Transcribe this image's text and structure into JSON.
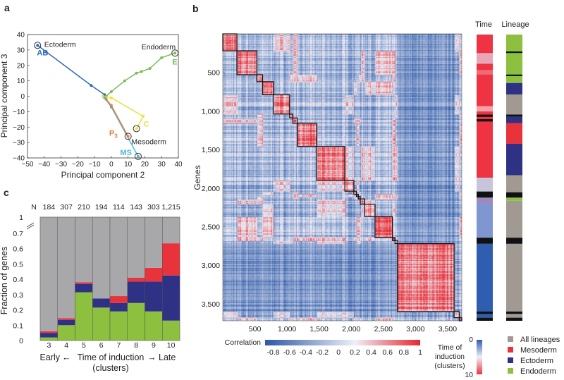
{
  "panel_labels": {
    "a": "a",
    "b": "b",
    "c": "c"
  },
  "chart_data": [
    {
      "panel": "a",
      "type": "line",
      "xlabel": "Principal component 2",
      "ylabel": "Principal component 3",
      "xlim": [
        -50,
        40
      ],
      "ylim": [
        -40,
        40
      ],
      "xticks": [
        -50,
        -40,
        -30,
        -20,
        -10,
        0,
        10,
        20,
        30,
        40
      ],
      "yticks": [
        -40,
        -30,
        -20,
        -10,
        0,
        10,
        20,
        30,
        40
      ],
      "xtick_labels": [
        "−50",
        "−40",
        "−30",
        "−20",
        "−10",
        "0",
        "10",
        "20",
        "30",
        "40"
      ],
      "ytick_labels": [
        "−40",
        "−30",
        "−20",
        "−10",
        "0",
        "10",
        "20",
        "30",
        "40"
      ],
      "series": [
        {
          "name": "AB",
          "color": "#2a66b8",
          "x": [
            -5,
            -4,
            -12,
            -44
          ],
          "y": [
            0,
            1,
            7,
            33
          ]
        },
        {
          "name": "E",
          "color": "#7dbb5a",
          "x": [
            -5,
            -3,
            0,
            8,
            15,
            18,
            23,
            30,
            38
          ],
          "y": [
            0,
            0,
            3,
            10,
            15,
            16,
            18,
            25,
            28
          ]
        },
        {
          "name": "C",
          "color": "#e6e437",
          "x": [
            -5,
            0,
            19,
            15
          ],
          "y": [
            0,
            -1,
            -13,
            -21
          ]
        },
        {
          "name": "MS",
          "color": "#4bb8d6",
          "x": [
            -4,
            0,
            16
          ],
          "y": [
            -1,
            -7,
            -39
          ]
        },
        {
          "name": "P3",
          "color": "#ec7b35",
          "x": [
            -3,
            0,
            10
          ],
          "y": [
            -2,
            -6,
            -26
          ]
        }
      ],
      "annotations": [
        "Ectoderm",
        "Endoderm",
        "Mesoderm"
      ],
      "label_sub": "3"
    },
    {
      "panel": "b",
      "type": "heatmap",
      "ylabel": "Genes",
      "xlim": [
        0,
        3720
      ],
      "ylim": [
        0,
        3720
      ],
      "ticks": [
        500,
        1000,
        1500,
        2000,
        2500,
        3000,
        3500
      ],
      "tick_labels": [
        "500",
        "1,000",
        "1,500",
        "2,000",
        "2,500",
        "3,000",
        "3,500"
      ],
      "cluster_boundaries": [
        0,
        220,
        530,
        620,
        790,
        1040,
        1090,
        1160,
        1460,
        1900,
        2040,
        2080,
        2110,
        2140,
        2210,
        2370,
        2640,
        2680,
        2720,
        3600,
        3680,
        3720
      ],
      "colorbar": {
        "label": "Correlation",
        "range": [
          -0.9,
          1
        ],
        "ticks": [
          -0.8,
          -0.6,
          -0.4,
          -0.2,
          0,
          0.2,
          0.4,
          0.6,
          0.8,
          1
        ],
        "tick_labels": [
          "-0.8",
          "-0.6",
          "-0.4",
          "-0.2",
          "0",
          "0.2",
          "0.4",
          "0.6",
          "0.8",
          "1"
        ],
        "colors": [
          "#2b57a6",
          "#eef0f8",
          "#e62830"
        ]
      },
      "side_bars": {
        "time": {
          "title": "Time",
          "segments": [
            [
              0,
              1860,
              "#ee3442"
            ],
            [
              240,
              380,
              "#e9a6b4"
            ],
            [
              460,
              520,
              "#f06a78"
            ],
            [
              930,
              1000,
              "#f3a0a8"
            ],
            [
              1040,
              1070,
              "#111111"
            ],
            [
              1100,
              1130,
              "#111111"
            ],
            [
              1860,
              2040,
              "#c8c4dc"
            ],
            [
              2040,
              2120,
              "#111111"
            ],
            [
              2120,
              2200,
              "#9a8ac0"
            ],
            [
              2200,
              2640,
              "#7f96d0"
            ],
            [
              2640,
              2720,
              "#111111"
            ],
            [
              2720,
              3680,
              "#2f5db0"
            ],
            [
              3600,
              3630,
              "#111111"
            ],
            [
              3680,
              3720,
              "#111111"
            ]
          ]
        },
        "lineage": {
          "title": "Lineage",
          "segments": [
            [
              0,
              630,
              "#8dc03f"
            ],
            [
              220,
              240,
              "#111111"
            ],
            [
              520,
              540,
              "#111111"
            ],
            [
              630,
              780,
              "#2e3184"
            ],
            [
              780,
              1040,
              "#a09a92"
            ],
            [
              1040,
              1070,
              "#111111"
            ],
            [
              1070,
              1150,
              "#2e3184"
            ],
            [
              1150,
              1420,
              "#e8333a"
            ],
            [
              1420,
              1830,
              "#2e3184"
            ],
            [
              1830,
              2050,
              "#a09a92"
            ],
            [
              2050,
              2120,
              "#111111"
            ],
            [
              2120,
              2160,
              "#8dc03f"
            ],
            [
              2160,
              2640,
              "#a09a92"
            ],
            [
              2640,
              2720,
              "#111111"
            ],
            [
              2720,
              3680,
              "#a09a92"
            ],
            [
              3600,
              3630,
              "#111111"
            ],
            [
              3680,
              3720,
              "#111111"
            ]
          ]
        }
      },
      "time_colorbar": {
        "label": "Time of induction (clusters)",
        "min_label": "0",
        "max_label": "10",
        "colors": [
          "#2f5db0",
          "#eef0f8",
          "#ee3442"
        ]
      },
      "legend": [
        {
          "label": "All lineages",
          "color": "#a09a92"
        },
        {
          "label": "Mesoderm",
          "color": "#e8333a"
        },
        {
          "label": "Ectoderm",
          "color": "#2e3184"
        },
        {
          "label": "Endoderm",
          "color": "#8dc03f"
        }
      ]
    },
    {
      "panel": "c",
      "type": "bar",
      "stacked": true,
      "ylabel": "Fraction of genes",
      "xlabel": "Time of induction",
      "xlabel_left": "Early",
      "xlabel_right": "Late",
      "xlabel_sub": "(clusters)",
      "categories": [
        "3",
        "4",
        "5",
        "6",
        "7",
        "8",
        "9",
        "10"
      ],
      "n_label": "N",
      "n_values": [
        "184",
        "307",
        "210",
        "194",
        "114",
        "143",
        "303",
        "1,215"
      ],
      "ylim": [
        0,
        1
      ],
      "axis_break": [
        0.7,
        1
      ],
      "yticks": [
        "0",
        "0.1",
        "0.2",
        "0.3",
        "0.4",
        "0.5",
        "0.6",
        "0.7",
        "1"
      ],
      "series": [
        {
          "name": "Endoderm",
          "color": "#8dc03f",
          "values": [
            0.02,
            0.1,
            0.315,
            0.215,
            0.19,
            0.245,
            0.19,
            0.13
          ]
        },
        {
          "name": "Ectoderm",
          "color": "#2e3184",
          "values": [
            0.03,
            0.035,
            0.055,
            0.06,
            0.055,
            0.14,
            0.195,
            0.295
          ]
        },
        {
          "name": "Mesoderm",
          "color": "#e8333a",
          "values": [
            0.01,
            0.01,
            0.01,
            0.0,
            0.045,
            0.025,
            0.09,
            0.21
          ]
        },
        {
          "name": "All lineages",
          "color": "#a8a8aa",
          "values": [
            0.94,
            0.855,
            0.62,
            0.725,
            0.71,
            0.59,
            0.525,
            0.365
          ]
        }
      ]
    }
  ]
}
